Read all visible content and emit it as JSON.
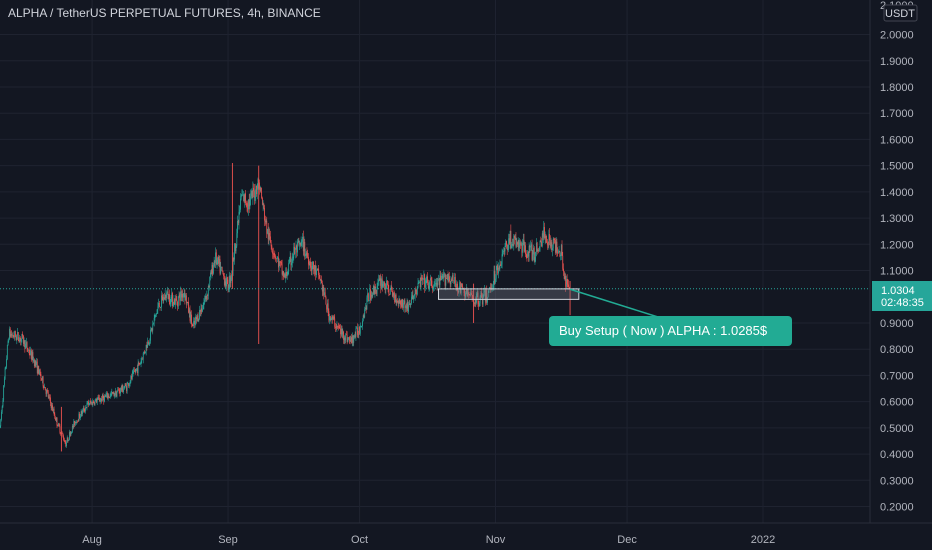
{
  "title": "ALPHA / TetherUS PERPETUAL FUTURES, 4h, BINANCE",
  "currency_badge": "USDT",
  "last_price": {
    "value": "1.0304",
    "countdown": "02:48:35",
    "color": "#26a69a"
  },
  "annotation": {
    "text": "Buy Setup ( Now ) ALPHA : 1.0285$",
    "color": "#22ab94"
  },
  "colors": {
    "up": "#26a69a",
    "down": "#ef5350",
    "background": "#131722",
    "grid": "#1f2330"
  },
  "chart_data": {
    "type": "candlestick",
    "title": "ALPHA / TetherUS PERPETUAL FUTURES, 4h, BINANCE",
    "interval": "4h",
    "exchange": "BINANCE",
    "y_axis_side": "right",
    "ylim": [
      0.13,
      2.12
    ],
    "yticks": [
      "2.0000",
      "1.9000",
      "1.8000",
      "1.7000",
      "1.6000",
      "1.5000",
      "1.4000",
      "1.3000",
      "1.2000",
      "1.1000",
      "0.9000",
      "0.8000",
      "0.7000",
      "0.6000",
      "0.5000",
      "0.4000",
      "0.3000",
      "0.2000"
    ],
    "x_ticks": [
      "Aug",
      "Sep",
      "Oct",
      "Nov",
      "Dec",
      "2022"
    ],
    "x_range": [
      "2021-07-11",
      "2022-01-14"
    ],
    "x_tick_dates": [
      "2021-08-01",
      "2021-09-01",
      "2021-10-01",
      "2021-11-01",
      "2021-12-01",
      "2022-01-01"
    ],
    "grid": true,
    "price_path": [
      [
        "2021-07-11",
        0.5
      ],
      [
        "2021-07-13",
        0.86
      ],
      [
        "2021-07-16",
        0.84
      ],
      [
        "2021-07-19",
        0.75
      ],
      [
        "2021-07-22",
        0.62
      ],
      [
        "2021-07-24",
        0.52
      ],
      [
        "2021-07-26",
        0.44
      ],
      [
        "2021-07-28",
        0.52
      ],
      [
        "2021-07-31",
        0.59
      ],
      [
        "2021-08-03",
        0.61
      ],
      [
        "2021-08-06",
        0.63
      ],
      [
        "2021-08-09",
        0.66
      ],
      [
        "2021-08-12",
        0.75
      ],
      [
        "2021-08-14",
        0.84
      ],
      [
        "2021-08-16",
        0.96
      ],
      [
        "2021-08-18",
        1.01
      ],
      [
        "2021-08-20",
        0.98
      ],
      [
        "2021-08-22",
        1.02
      ],
      [
        "2021-08-24",
        0.88
      ],
      [
        "2021-08-27",
        1.0
      ],
      [
        "2021-08-29",
        1.15
      ],
      [
        "2021-09-01",
        1.04
      ],
      [
        "2021-09-02",
        1.11
      ],
      [
        "2021-09-04",
        1.38
      ],
      [
        "2021-09-06",
        1.36
      ],
      [
        "2021-09-08",
        1.44
      ],
      [
        "2021-09-10",
        1.24
      ],
      [
        "2021-09-12",
        1.15
      ],
      [
        "2021-09-14",
        1.07
      ],
      [
        "2021-09-16",
        1.17
      ],
      [
        "2021-09-18",
        1.2
      ],
      [
        "2021-09-20",
        1.12
      ],
      [
        "2021-09-22",
        1.07
      ],
      [
        "2021-09-24",
        0.93
      ],
      [
        "2021-09-27",
        0.86
      ],
      [
        "2021-09-29",
        0.83
      ],
      [
        "2021-10-01",
        0.88
      ],
      [
        "2021-10-03",
        1.0
      ],
      [
        "2021-10-06",
        1.06
      ],
      [
        "2021-10-09",
        1.0
      ],
      [
        "2021-10-12",
        0.96
      ],
      [
        "2021-10-15",
        1.06
      ],
      [
        "2021-10-18",
        1.04
      ],
      [
        "2021-10-21",
        1.08
      ],
      [
        "2021-10-24",
        1.03
      ],
      [
        "2021-10-27",
        0.99
      ],
      [
        "2021-10-30",
        1.0
      ],
      [
        "2021-11-02",
        1.13
      ],
      [
        "2021-11-04",
        1.22
      ],
      [
        "2021-11-07",
        1.19
      ],
      [
        "2021-11-10",
        1.16
      ],
      [
        "2021-11-12",
        1.24
      ],
      [
        "2021-11-14",
        1.2
      ],
      [
        "2021-11-16",
        1.18
      ],
      [
        "2021-11-17",
        1.05
      ],
      [
        "2021-11-18",
        1.03
      ]
    ],
    "spikes": [
      {
        "date": "2021-09-08",
        "low": 0.82,
        "high": 1.5
      },
      {
        "date": "2021-09-02",
        "low": 1.03,
        "high": 1.51
      },
      {
        "date": "2021-07-25",
        "low": 0.41,
        "high": 0.58
      },
      {
        "date": "2021-10-27",
        "low": 0.9,
        "high": 1.05
      },
      {
        "date": "2021-11-18",
        "low": 0.93,
        "high": 1.06
      }
    ],
    "annotations": [
      {
        "type": "rectangle",
        "date_from": "2021-10-19",
        "date_to": "2021-11-20",
        "price_from": 0.99,
        "price_to": 1.03
      },
      {
        "type": "callout",
        "text": "Buy Setup ( Now ) ALPHA : 1.0285$",
        "anchor_date": "2021-11-18",
        "anchor_price": 1.0285
      }
    ],
    "last_price": 1.0304
  }
}
